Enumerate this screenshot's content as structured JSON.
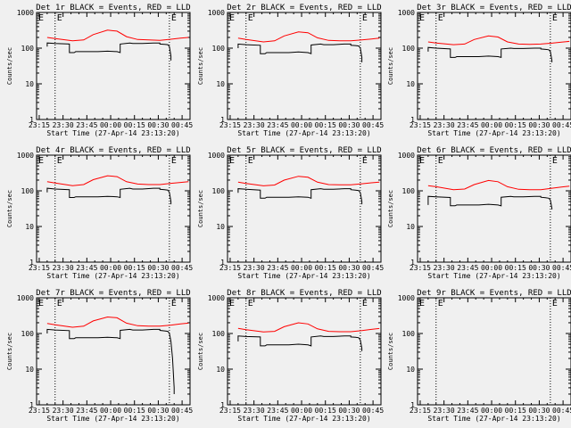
{
  "colors": {
    "background": "#f0f0f0",
    "events": "#000000",
    "lld": "#ff0000",
    "axis": "#000000"
  },
  "shared": {
    "ylabel": "Counts/sec",
    "xlabel": "Start Time (27-Apr-14 23:13:20)",
    "x_ticks": [
      "23:15",
      "23:30",
      "23:45",
      "00:00",
      "00:15",
      "00:30",
      "00:45"
    ],
    "y_ticks": [
      "1",
      "10",
      "100",
      "1000"
    ],
    "marker": "E",
    "ylim": [
      1,
      1000
    ],
    "y_scale": "log",
    "x_dotted_lines": [
      "23:25",
      "00:37"
    ]
  },
  "chart_data": [
    {
      "type": "line",
      "title": "Det 1r BLACK = Events, RED = LLD",
      "series": [
        {
          "name": "Events",
          "x": [
            "23:20",
            "23:20",
            "23:25",
            "23:34",
            "23:34",
            "23:37",
            "23:38",
            "23:52",
            "23:58",
            "00:04",
            "00:06",
            "00:06",
            "00:12",
            "00:14",
            "00:20",
            "00:27",
            "00:31",
            "00:31",
            "00:34",
            "00:36",
            "00:37",
            "00:38",
            "00:38"
          ],
          "values": [
            110,
            140,
            135,
            130,
            75,
            75,
            80,
            80,
            82,
            80,
            75,
            130,
            140,
            135,
            135,
            140,
            140,
            130,
            128,
            125,
            110,
            60,
            45
          ]
        },
        {
          "name": "LLD",
          "x": [
            "23:20",
            "23:25",
            "23:36",
            "23:43",
            "23:49",
            "23:58",
            "00:04",
            "00:10",
            "00:17",
            "00:24",
            "00:31",
            "00:38",
            "00:44",
            "00:49"
          ],
          "values": [
            200,
            185,
            160,
            170,
            240,
            320,
            300,
            210,
            175,
            170,
            165,
            178,
            190,
            200
          ]
        }
      ]
    },
    {
      "type": "line",
      "title": "Det 2r BLACK = Events, RED = LLD",
      "series": [
        {
          "name": "Events",
          "x": [
            "23:20",
            "23:20",
            "23:25",
            "23:34",
            "23:34",
            "23:37",
            "23:38",
            "23:52",
            "23:58",
            "00:04",
            "00:06",
            "00:06",
            "00:12",
            "00:14",
            "00:20",
            "00:27",
            "00:31",
            "00:31",
            "00:34",
            "00:36",
            "00:37",
            "00:38",
            "00:38"
          ],
          "values": [
            100,
            130,
            125,
            120,
            70,
            70,
            75,
            75,
            78,
            75,
            70,
            122,
            130,
            125,
            125,
            130,
            130,
            120,
            118,
            115,
            100,
            55,
            40
          ]
        },
        {
          "name": "LLD",
          "x": [
            "23:20",
            "23:25",
            "23:36",
            "23:43",
            "23:49",
            "23:58",
            "00:04",
            "00:10",
            "00:17",
            "00:24",
            "00:31",
            "00:38",
            "00:44",
            "00:49"
          ],
          "values": [
            190,
            175,
            150,
            160,
            220,
            285,
            270,
            195,
            165,
            160,
            160,
            170,
            180,
            190
          ]
        }
      ]
    },
    {
      "type": "line",
      "title": "Det 3r BLACK = Events, RED = LLD",
      "series": [
        {
          "name": "Events",
          "x": [
            "23:20",
            "23:20",
            "23:25",
            "23:34",
            "23:34",
            "23:37",
            "23:38",
            "23:52",
            "23:58",
            "00:04",
            "00:06",
            "00:06",
            "00:12",
            "00:14",
            "00:20",
            "00:27",
            "00:31",
            "00:31",
            "00:34",
            "00:36",
            "00:37",
            "00:38",
            "00:38"
          ],
          "values": [
            80,
            105,
            100,
            95,
            55,
            55,
            58,
            58,
            60,
            58,
            55,
            95,
            100,
            98,
            98,
            100,
            100,
            95,
            92,
            90,
            80,
            45,
            40
          ]
        },
        {
          "name": "LLD",
          "x": [
            "23:20",
            "23:25",
            "23:36",
            "23:43",
            "23:49",
            "23:58",
            "00:04",
            "00:10",
            "00:17",
            "00:24",
            "00:31",
            "00:38",
            "00:44",
            "00:49"
          ],
          "values": [
            150,
            140,
            125,
            130,
            175,
            220,
            205,
            150,
            130,
            128,
            130,
            138,
            148,
            155
          ]
        }
      ]
    },
    {
      "type": "line",
      "title": "Det 4r BLACK = Events, RED = LLD",
      "series": [
        {
          "name": "Events",
          "x": [
            "23:20",
            "23:20",
            "23:25",
            "23:34",
            "23:34",
            "23:37",
            "23:38",
            "23:52",
            "23:58",
            "00:04",
            "00:06",
            "00:06",
            "00:12",
            "00:14",
            "00:20",
            "00:27",
            "00:31",
            "00:31",
            "00:34",
            "00:36",
            "00:37",
            "00:38",
            "00:38"
          ],
          "values": [
            90,
            118,
            112,
            108,
            65,
            65,
            68,
            68,
            70,
            68,
            65,
            110,
            118,
            112,
            112,
            118,
            118,
            110,
            108,
            105,
            90,
            50,
            42
          ]
        },
        {
          "name": "LLD",
          "x": [
            "23:20",
            "23:25",
            "23:36",
            "23:43",
            "23:49",
            "23:58",
            "00:04",
            "00:10",
            "00:17",
            "00:24",
            "00:31",
            "00:38",
            "00:44",
            "00:49"
          ],
          "values": [
            180,
            165,
            140,
            150,
            205,
            265,
            250,
            180,
            155,
            150,
            150,
            162,
            172,
            180
          ]
        }
      ]
    },
    {
      "type": "line",
      "title": "Det 5r BLACK = Events, RED = LLD",
      "series": [
        {
          "name": "Events",
          "x": [
            "23:20",
            "23:20",
            "23:25",
            "23:34",
            "23:34",
            "23:37",
            "23:38",
            "23:52",
            "23:58",
            "00:04",
            "00:06",
            "00:06",
            "00:12",
            "00:14",
            "00:20",
            "00:27",
            "00:31",
            "00:31",
            "00:34",
            "00:36",
            "00:37",
            "00:38",
            "00:38"
          ],
          "values": [
            88,
            115,
            110,
            105,
            62,
            62,
            66,
            66,
            68,
            66,
            62,
            108,
            115,
            110,
            110,
            115,
            115,
            108,
            105,
            102,
            88,
            50,
            42
          ]
        },
        {
          "name": "LLD",
          "x": [
            "23:20",
            "23:25",
            "23:36",
            "23:43",
            "23:49",
            "23:58",
            "00:04",
            "00:10",
            "00:17",
            "00:24",
            "00:31",
            "00:38",
            "00:44",
            "00:49"
          ],
          "values": [
            175,
            160,
            138,
            145,
            200,
            255,
            240,
            175,
            150,
            148,
            148,
            158,
            168,
            175
          ]
        }
      ]
    },
    {
      "type": "line",
      "title": "Det 6r BLACK = Events, RED = LLD",
      "series": [
        {
          "name": "Events",
          "x": [
            "23:20",
            "23:20",
            "23:25",
            "23:34",
            "23:34",
            "23:37",
            "23:38",
            "23:52",
            "23:58",
            "00:04",
            "00:06",
            "00:06",
            "00:12",
            "00:14",
            "00:20",
            "00:27",
            "00:31",
            "00:31",
            "00:34",
            "00:36",
            "00:37",
            "00:38",
            "00:38"
          ],
          "values": [
            40,
            70,
            68,
            65,
            38,
            38,
            40,
            40,
            42,
            40,
            38,
            66,
            70,
            68,
            68,
            70,
            70,
            66,
            64,
            62,
            55,
            32,
            30
          ]
        },
        {
          "name": "LLD",
          "x": [
            "23:20",
            "23:25",
            "23:36",
            "23:43",
            "23:49",
            "23:58",
            "00:04",
            "00:10",
            "00:17",
            "00:24",
            "00:31",
            "00:38",
            "00:44",
            "00:49"
          ],
          "values": [
            140,
            130,
            108,
            112,
            150,
            195,
            180,
            130,
            110,
            108,
            108,
            118,
            128,
            135
          ]
        }
      ]
    },
    {
      "type": "line",
      "title": "Det 7r BLACK = Events, RED = LLD",
      "series": [
        {
          "name": "Events",
          "x": [
            "23:20",
            "23:20",
            "23:25",
            "23:34",
            "23:34",
            "23:37",
            "23:38",
            "23:52",
            "23:58",
            "00:04",
            "00:06",
            "00:06",
            "00:12",
            "00:14",
            "00:20",
            "00:27",
            "00:31",
            "00:31",
            "00:34",
            "00:36",
            "00:37",
            "00:38",
            "00:39",
            "00:40",
            "00:40"
          ],
          "values": [
            100,
            130,
            125,
            120,
            72,
            72,
            76,
            76,
            78,
            76,
            72,
            122,
            130,
            125,
            125,
            130,
            130,
            122,
            118,
            115,
            100,
            60,
            20,
            3,
            2
          ]
        },
        {
          "name": "LLD",
          "x": [
            "23:20",
            "23:25",
            "23:36",
            "23:43",
            "23:49",
            "23:58",
            "00:04",
            "00:10",
            "00:17",
            "00:24",
            "00:31",
            "00:38",
            "00:44",
            "00:49"
          ],
          "values": [
            190,
            175,
            150,
            160,
            225,
            290,
            275,
            195,
            165,
            160,
            160,
            172,
            185,
            195
          ]
        }
      ]
    },
    {
      "type": "line",
      "title": "Det 8r BLACK = Events, RED = LLD",
      "series": [
        {
          "name": "Events",
          "x": [
            "23:20",
            "23:20",
            "23:25",
            "23:34",
            "23:34",
            "23:37",
            "23:38",
            "23:52",
            "23:58",
            "00:04",
            "00:06",
            "00:06",
            "00:12",
            "00:14",
            "00:20",
            "00:27",
            "00:31",
            "00:31",
            "00:34",
            "00:36",
            "00:37",
            "00:38",
            "00:38"
          ],
          "values": [
            60,
            85,
            82,
            80,
            45,
            45,
            48,
            48,
            50,
            48,
            45,
            80,
            85,
            82,
            82,
            85,
            85,
            80,
            78,
            76,
            65,
            38,
            32
          ]
        },
        {
          "name": "LLD",
          "x": [
            "23:20",
            "23:25",
            "23:36",
            "23:43",
            "23:49",
            "23:58",
            "00:04",
            "00:10",
            "00:17",
            "00:24",
            "00:31",
            "00:38",
            "00:44",
            "00:49"
          ],
          "values": [
            140,
            128,
            110,
            115,
            155,
            200,
            185,
            135,
            115,
            112,
            112,
            120,
            130,
            138
          ]
        }
      ]
    },
    {
      "type": "line",
      "title": "Det 9r BLACK = Events, RED = LLD",
      "series": []
    }
  ]
}
